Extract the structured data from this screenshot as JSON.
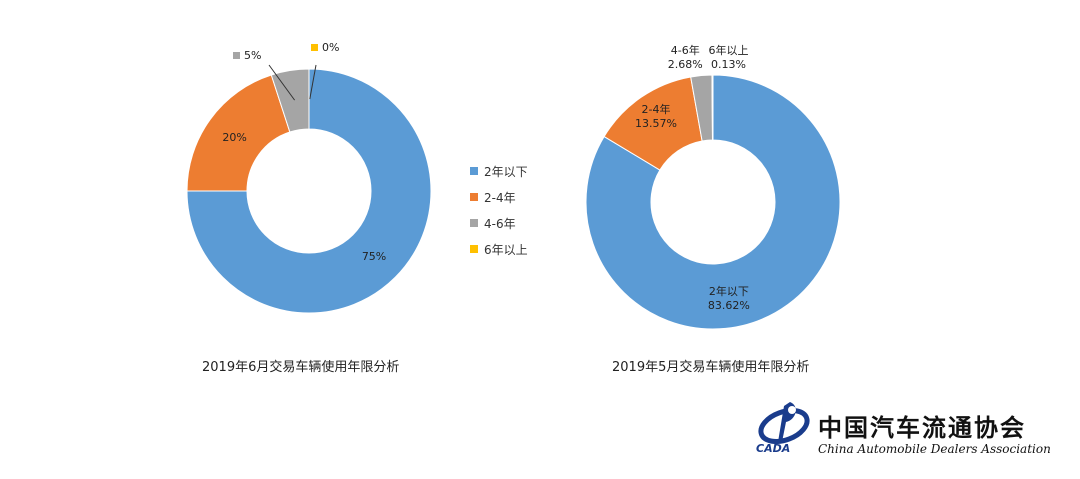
{
  "chart_data": [
    {
      "type": "donut",
      "title": "2019年6月交易车辆使用年限分析",
      "categories": [
        "2年以下",
        "2-4年",
        "4-6年",
        "6年以上"
      ],
      "values": [
        75,
        20,
        5,
        0
      ],
      "data_labels": [
        "75%",
        "20%",
        "5%",
        "0%"
      ],
      "colors": [
        "#5b9bd5",
        "#ed7d31",
        "#a5a5a5",
        "#ffc000"
      ]
    },
    {
      "type": "donut",
      "title": "2019年5月交易车辆使用年限分析",
      "categories": [
        "2年以下",
        "2-4年",
        "4-6年",
        "6年以上"
      ],
      "values": [
        83.62,
        13.57,
        2.68,
        0.13
      ],
      "data_labels": [
        {
          "category": "2年以下",
          "value": "83.62%"
        },
        {
          "category": "2-4年",
          "value": "13.57%"
        },
        {
          "category": "4-6年",
          "value": "2.68%"
        },
        {
          "category": "6年以上",
          "value": "0.13%"
        }
      ],
      "colors": [
        "#5b9bd5",
        "#ed7d31",
        "#a5a5a5",
        "#ffc000"
      ]
    }
  ],
  "legend": {
    "placement": "center",
    "items": [
      {
        "label": "2年以下",
        "color": "#5b9bd5"
      },
      {
        "label": "2-4年",
        "color": "#ed7d31"
      },
      {
        "label": "4-6年",
        "color": "#a5a5a5"
      },
      {
        "label": "6年以上",
        "color": "#ffc000"
      }
    ]
  },
  "logo": {
    "name_cn": "中国汽车流通协会",
    "name_en": "China Automobile Dealers Association",
    "abbr": "CADA"
  }
}
